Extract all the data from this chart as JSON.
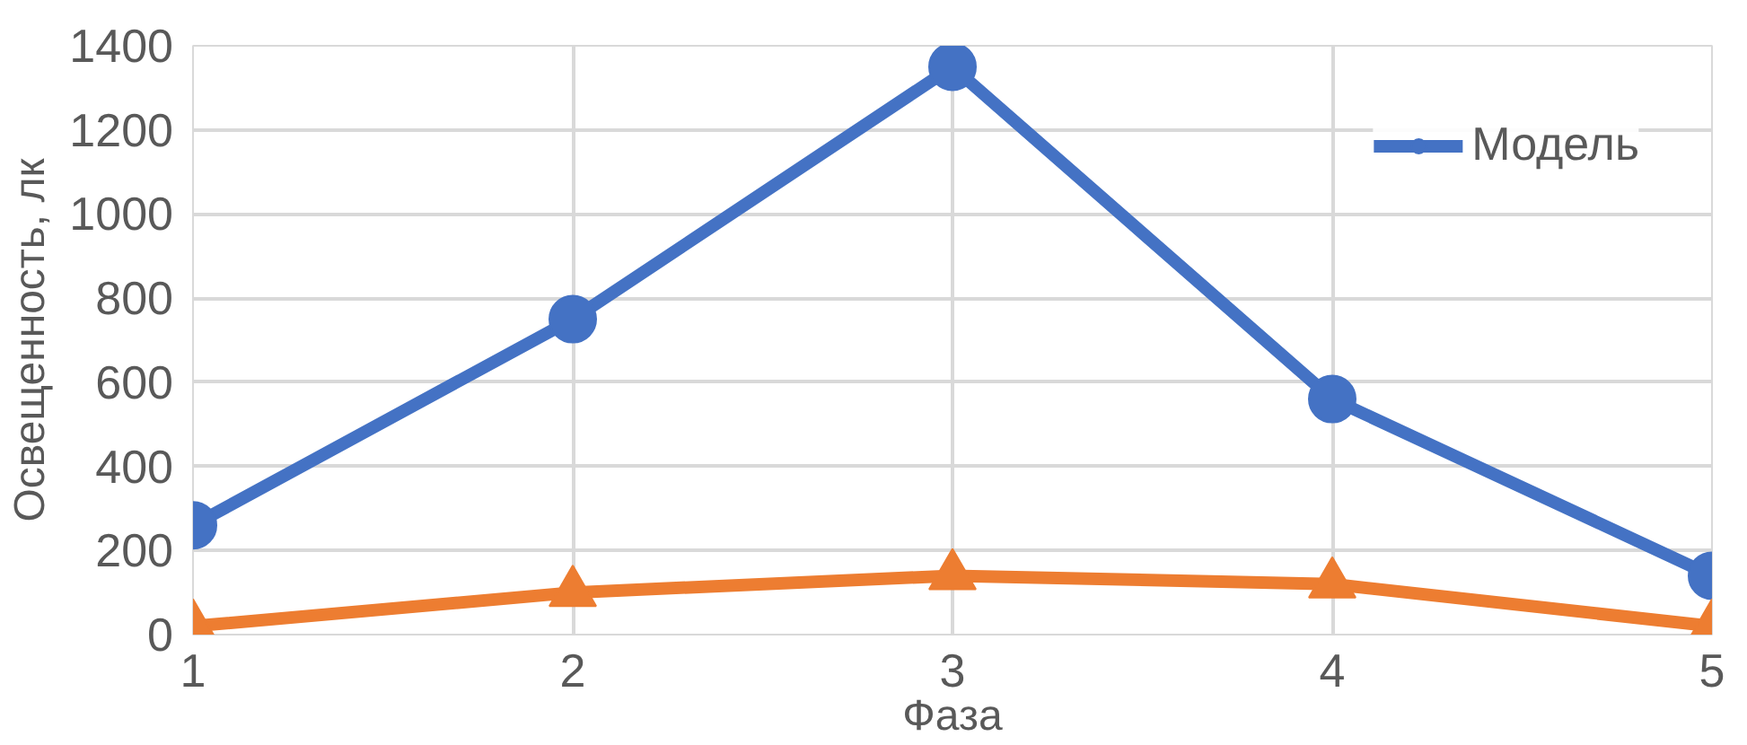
{
  "chart_data": {
    "type": "line",
    "xlabel": "Фаза",
    "ylabel": "Освещенность, лк",
    "x": [
      1,
      2,
      3,
      4,
      5
    ],
    "series": [
      {
        "name": "Модель",
        "color": "#4472c4",
        "marker": "circle",
        "values": [
          260,
          750,
          1350,
          560,
          140
        ]
      },
      {
        "color": "#ed7d31",
        "marker": "triangle",
        "values": [
          20,
          100,
          140,
          120,
          20
        ]
      }
    ],
    "xlim": [
      1,
      5
    ],
    "xticks": [
      1,
      2,
      3,
      4,
      5
    ],
    "ylim": [
      0,
      1400
    ],
    "yticks": [
      0,
      200,
      400,
      600,
      800,
      1000,
      1200,
      1400
    ],
    "grid": true,
    "legend": "top right",
    "line_style": "solid"
  }
}
